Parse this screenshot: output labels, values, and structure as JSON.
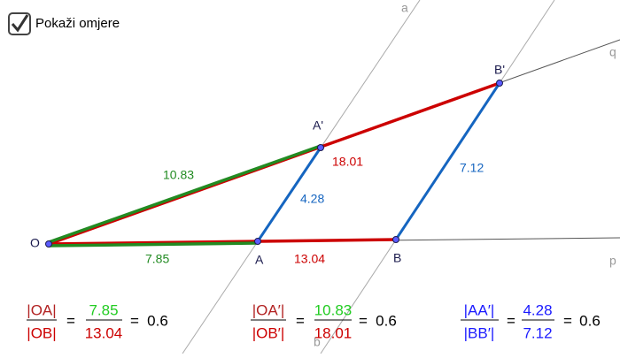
{
  "checkbox": {
    "label": "Pokaži omjere",
    "checked": true
  },
  "points": {
    "O": "O",
    "A": "A",
    "B": "B",
    "A1": "A'",
    "B1": "B'"
  },
  "lines": {
    "a": "a",
    "b": "b",
    "p": "p",
    "q": "q"
  },
  "lengths": {
    "OA": "7.85",
    "OB": "13.04",
    "OA1": "10.83",
    "OB1": "18.01",
    "AA1": "4.28",
    "BB1": "7.12"
  },
  "equals_sign": "=",
  "ratios": [
    {
      "num_label": "|OA|",
      "den_label": "|OB|",
      "num": "7.85",
      "den": "13.04",
      "result": "0.6"
    },
    {
      "num_label": "|OA′|",
      "den_label": "|OB′|",
      "num": "10.83",
      "den": "18.01",
      "result": "0.6"
    },
    {
      "num_label": "|AA′|",
      "den_label": "|BB′|",
      "num": "4.28",
      "den": "7.12",
      "result": "0.6"
    }
  ]
}
